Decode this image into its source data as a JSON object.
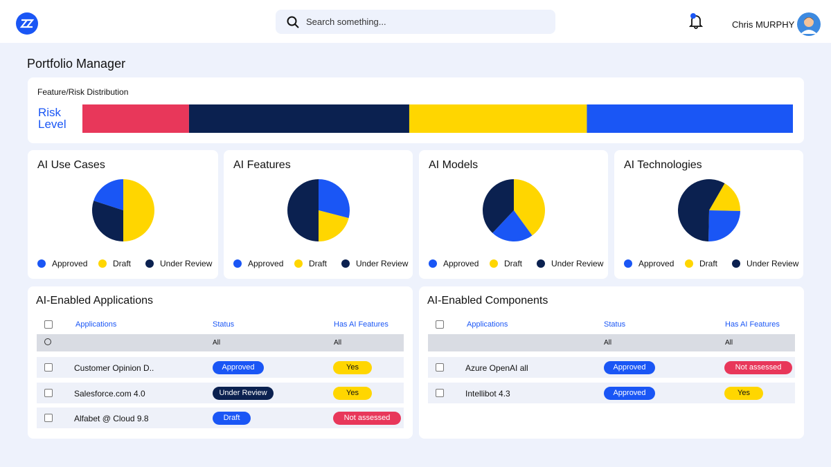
{
  "header": {
    "search_placeholder": "Search something...",
    "user_name": "Chris MURPHY"
  },
  "page_title": "Portfolio Manager",
  "risk_distribution": {
    "title": "Feature/Risk Distribution",
    "label": "Risk Level",
    "values": [
      15,
      31,
      25,
      29
    ],
    "colors": [
      "#e8375a",
      "#0b2150",
      "#ffd600",
      "#1a56f5"
    ]
  },
  "pie_charts": [
    {
      "type": "pie",
      "title": "AI Use Cases",
      "categories": [
        "Approved",
        "Draft",
        "Under Review"
      ],
      "values": [
        20,
        50,
        30
      ],
      "colors": [
        "#1a56f5",
        "#ffd600",
        "#0b2150"
      ]
    },
    {
      "type": "pie",
      "title": "AI Features",
      "categories": [
        "Approved",
        "Draft",
        "Under Review"
      ],
      "values": [
        29,
        21,
        50
      ],
      "colors": [
        "#1a56f5",
        "#ffd600",
        "#0b2150"
      ]
    },
    {
      "type": "pie",
      "title": "AI Models",
      "categories": [
        "Approved",
        "Draft",
        "Under Review"
      ],
      "values": [
        22,
        40,
        38
      ],
      "colors": [
        "#1a56f5",
        "#ffd600",
        "#0b2150"
      ]
    },
    {
      "type": "pie",
      "title": "AI Technologies",
      "categories": [
        "Approved",
        "Draft",
        "Under Review"
      ],
      "values": [
        25,
        17,
        58
      ],
      "colors": [
        "#1a56f5",
        "#ffd600",
        "#0b2150"
      ]
    }
  ],
  "tables": [
    {
      "title": "AI-Enabled Applications",
      "columns": [
        "Applications",
        "Status",
        "Has AI Features"
      ],
      "filters": [
        "All",
        "All"
      ],
      "rows": [
        [
          "Customer Opinion D..",
          "Approved",
          "Yes"
        ],
        [
          "Salesforce.com 4.0",
          "Under Review",
          "Yes"
        ],
        [
          "Alfabet @ Cloud 9.8",
          "Draft",
          "Not assessed"
        ]
      ]
    },
    {
      "title": "AI-Enabled Components",
      "columns": [
        "Applications",
        "Status",
        "Has AI Features"
      ],
      "filters": [
        "All",
        "All"
      ],
      "rows": [
        [
          "Azure OpenAI all",
          "Approved",
          "Not assessed"
        ],
        [
          "Intellibot 4.3",
          "Approved",
          "Yes"
        ]
      ]
    }
  ]
}
